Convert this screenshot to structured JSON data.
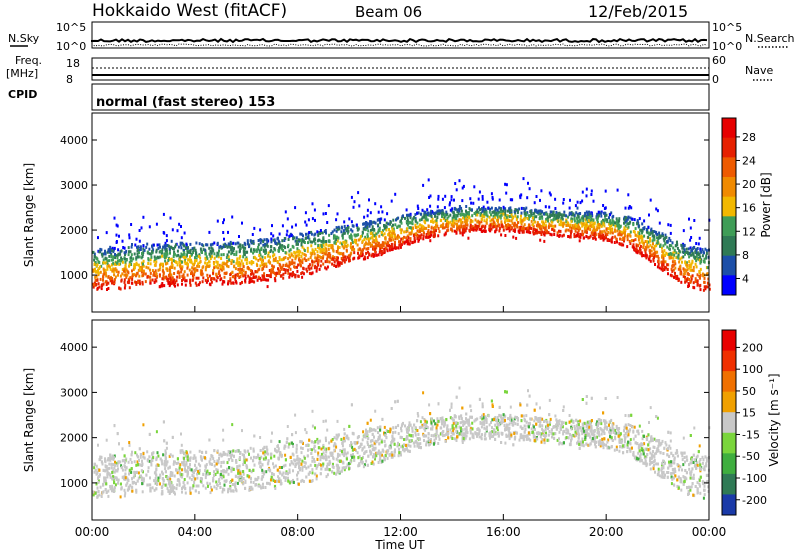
{
  "header": {
    "title": "Hokkaido West (fitACF)",
    "beam": "Beam 06",
    "date": "12/Feb/2015"
  },
  "top_panels": {
    "nsky_label": "N.Sky",
    "nsearch_label": "N.Search",
    "noise_left_ticks": [
      "10^5",
      "10^0"
    ],
    "noise_right_ticks": [
      "10^5",
      "10^0"
    ],
    "freq_label": [
      "Freq.",
      "[MHz]"
    ],
    "freq_ticks": [
      "18",
      "8"
    ],
    "nave_label": "Nave",
    "nave_ticks": [
      "60",
      "0"
    ],
    "cpid_label": "CPID",
    "cpid_text": "normal (fast stereo) 153"
  },
  "chart_data": [
    {
      "type": "heatmap",
      "name": "power",
      "ylabel": "Slant Range [km]",
      "yticks": [
        1000,
        2000,
        3000,
        4000
      ],
      "ylim": [
        180,
        4600
      ],
      "xlim_hours": [
        0,
        24
      ],
      "colorbar_label": "Power [dB]",
      "colorbar_ticks": [
        "28",
        "24",
        "20",
        "16",
        "12",
        "8",
        "4"
      ],
      "colorscale": [
        "#0000ff",
        "#1c4fa8",
        "#2f7a55",
        "#3f9d57",
        "#f2b800",
        "#f08a00",
        "#ee5a00",
        "#e62000",
        "#e60000"
      ],
      "scatter_bands": [
        {
          "t": [
            0,
            1,
            2,
            3,
            4,
            5,
            6,
            7,
            8,
            9,
            10,
            11,
            12,
            13,
            14,
            15,
            16,
            17,
            18,
            19,
            20,
            21,
            22,
            23,
            24
          ],
          "r_low": [
            700,
            720,
            760,
            780,
            800,
            820,
            850,
            900,
            1000,
            1150,
            1300,
            1450,
            1650,
            1850,
            1950,
            2000,
            2000,
            1950,
            1900,
            1850,
            1800,
            1600,
            1200,
            800,
            650
          ],
          "r_high": [
            1600,
            1650,
            1700,
            1750,
            1750,
            1750,
            1800,
            1850,
            1950,
            2050,
            2150,
            2250,
            2350,
            2450,
            2500,
            2550,
            2550,
            2500,
            2450,
            2450,
            2400,
            2300,
            2000,
            1700,
            1600
          ]
        }
      ]
    },
    {
      "type": "heatmap",
      "name": "velocity",
      "ylabel": "Slant Range [km]",
      "yticks": [
        1000,
        2000,
        3000,
        4000
      ],
      "ylim": [
        180,
        4600
      ],
      "xlabel": "Time UT",
      "xticks": [
        "00:00",
        "04:00",
        "08:00",
        "12:00",
        "16:00",
        "20:00",
        "00:00"
      ],
      "colorbar_label": "Velocity [m s⁻¹]",
      "colorbar_ticks": [
        "200",
        "100",
        "50",
        "15",
        "-15",
        "-50",
        "-100",
        "-200"
      ],
      "colorscale": [
        "#1a3aa8",
        "#2f7a55",
        "#3fae3f",
        "#7ad53c",
        "#c8c8c8",
        "#f0a000",
        "#f07000",
        "#f03000",
        "#e80000"
      ]
    }
  ]
}
